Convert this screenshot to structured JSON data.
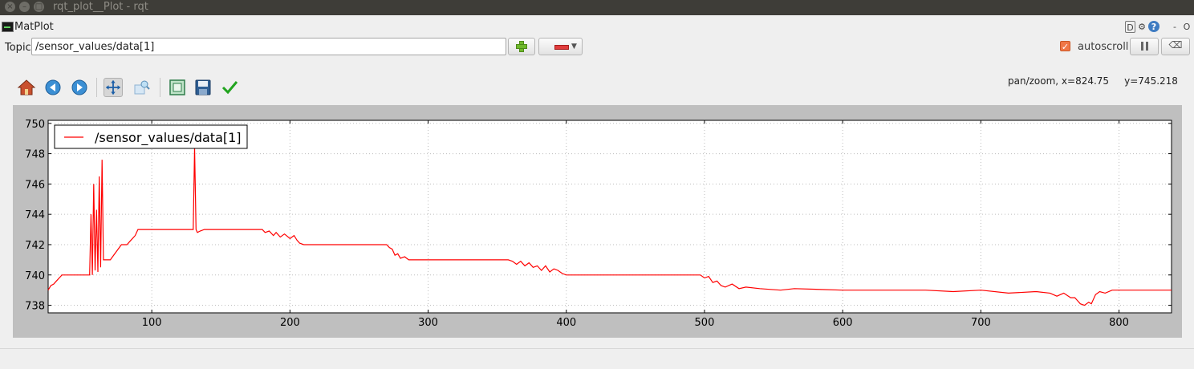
{
  "window": {
    "title": "rqt_plot__Plot - rqt",
    "buttons": [
      "×",
      "–",
      "□"
    ]
  },
  "plugin": {
    "title": "MatPlot",
    "controls": [
      "D",
      "⚙",
      "?",
      "-",
      "O"
    ]
  },
  "topic": {
    "label": "Topic",
    "value": "/sensor_values/data[1]"
  },
  "autoscroll": {
    "label": "autoscroll",
    "checked": true
  },
  "status": {
    "text": "pan/zoom, x=824.75     y=745.218"
  },
  "toolbar": {
    "icons": [
      "home-icon",
      "back-icon",
      "forward-icon",
      "pan-icon",
      "zoom-icon",
      "subplots-icon",
      "save-icon",
      "edit-icon"
    ],
    "active": "pan-icon"
  },
  "chart_data": {
    "type": "line",
    "xlim": [
      25,
      838
    ],
    "ylim": [
      737.5,
      750.2
    ],
    "xticks": [
      100,
      200,
      300,
      400,
      500,
      600,
      700,
      800
    ],
    "yticks": [
      738,
      740,
      742,
      744,
      746,
      748,
      750
    ],
    "grid": true,
    "legend_position": "upper-left",
    "series": [
      {
        "name": "/sensor_values/data[1]",
        "color": "#ff0000",
        "x": [
          25,
          27,
          29,
          31,
          33,
          35,
          40,
          50,
          55,
          56,
          57,
          58,
          59,
          60,
          61,
          62,
          63,
          64,
          65,
          66,
          67,
          68,
          70,
          78,
          80,
          82,
          85,
          88,
          90,
          100,
          110,
          120,
          130,
          131,
          132,
          133,
          135,
          138,
          140,
          150,
          160,
          170,
          180,
          182,
          185,
          188,
          190,
          193,
          196,
          200,
          203,
          205,
          207,
          210,
          215,
          225,
          240,
          255,
          270,
          272,
          274,
          276,
          278,
          280,
          283,
          286,
          290,
          300,
          320,
          340,
          355,
          358,
          361,
          364,
          367,
          370,
          373,
          376,
          379,
          382,
          385,
          388,
          391,
          394,
          397,
          400,
          420,
          440,
          460,
          480,
          497,
          500,
          503,
          506,
          509,
          512,
          515,
          520,
          525,
          530,
          540,
          555,
          565,
          600,
          620,
          640,
          660,
          680,
          700,
          720,
          740,
          750,
          755,
          760,
          765,
          768,
          770,
          772,
          775,
          778,
          780,
          783,
          786,
          790,
          795,
          800,
          810,
          820,
          830,
          838
        ],
        "y": [
          739,
          739.3,
          739.4,
          739.6,
          739.8,
          740,
          740,
          740,
          740,
          744,
          740,
          746,
          740.3,
          744.3,
          740.2,
          746.5,
          740.5,
          747.6,
          741,
          741,
          741,
          741,
          741,
          742,
          742,
          742,
          742.3,
          742.6,
          743,
          743,
          743,
          743,
          743,
          748.4,
          743,
          742.8,
          742.9,
          743,
          743,
          743,
          743,
          743,
          743,
          742.8,
          742.9,
          742.6,
          742.8,
          742.5,
          742.7,
          742.4,
          742.6,
          742.3,
          742.1,
          742,
          742,
          742,
          742,
          742,
          742,
          741.8,
          741.7,
          741.3,
          741.4,
          741.1,
          741.2,
          741,
          741,
          741,
          741,
          741,
          741,
          741,
          740.9,
          740.7,
          740.9,
          740.6,
          740.8,
          740.5,
          740.6,
          740.3,
          740.6,
          740.2,
          740.4,
          740.3,
          740.1,
          740,
          740,
          740,
          740,
          740,
          740,
          739.8,
          739.9,
          739.5,
          739.6,
          739.3,
          739.2,
          739.4,
          739.1,
          739.2,
          739.1,
          739,
          739.1,
          739,
          739,
          739,
          739,
          738.9,
          739,
          738.8,
          738.9,
          738.8,
          738.6,
          738.8,
          738.5,
          738.5,
          738.3,
          738.1,
          738,
          738.2,
          738.1,
          738.7,
          738.9,
          738.8,
          739,
          739,
          739,
          739,
          739,
          739
        ]
      }
    ]
  }
}
